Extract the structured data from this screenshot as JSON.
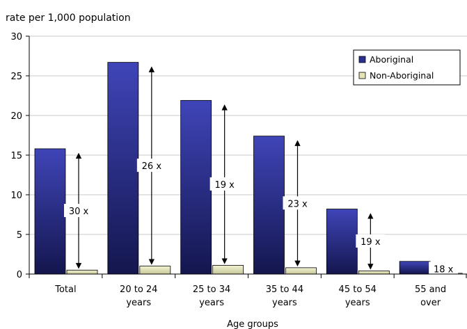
{
  "chart_data": {
    "type": "bar",
    "title": "",
    "ylabel": "rate per 1,000 population",
    "xlabel": "Age groups",
    "ylim": [
      0,
      30
    ],
    "yticks": [
      0,
      5,
      10,
      15,
      20,
      25,
      30
    ],
    "grid": true,
    "legend_position": "top-right",
    "categories": [
      [
        "Total"
      ],
      [
        "20 to 24",
        "years"
      ],
      [
        "25 to 34",
        "years"
      ],
      [
        "35 to 44",
        "years"
      ],
      [
        "45 to 54",
        "years"
      ],
      [
        "55 and",
        "over"
      ]
    ],
    "series": [
      {
        "name": "Aboriginal",
        "color": "#2b2f8f",
        "values": [
          15.8,
          26.7,
          21.9,
          17.4,
          8.2,
          1.6
        ]
      },
      {
        "name": "Non-Aboriginal",
        "color": "#e4e4b6",
        "values": [
          0.5,
          1.0,
          1.1,
          0.8,
          0.4,
          0.1
        ]
      }
    ],
    "ratio_labels": [
      "30 x",
      "26 x",
      "19 x",
      "23 x",
      "19 x",
      "18 x"
    ]
  }
}
